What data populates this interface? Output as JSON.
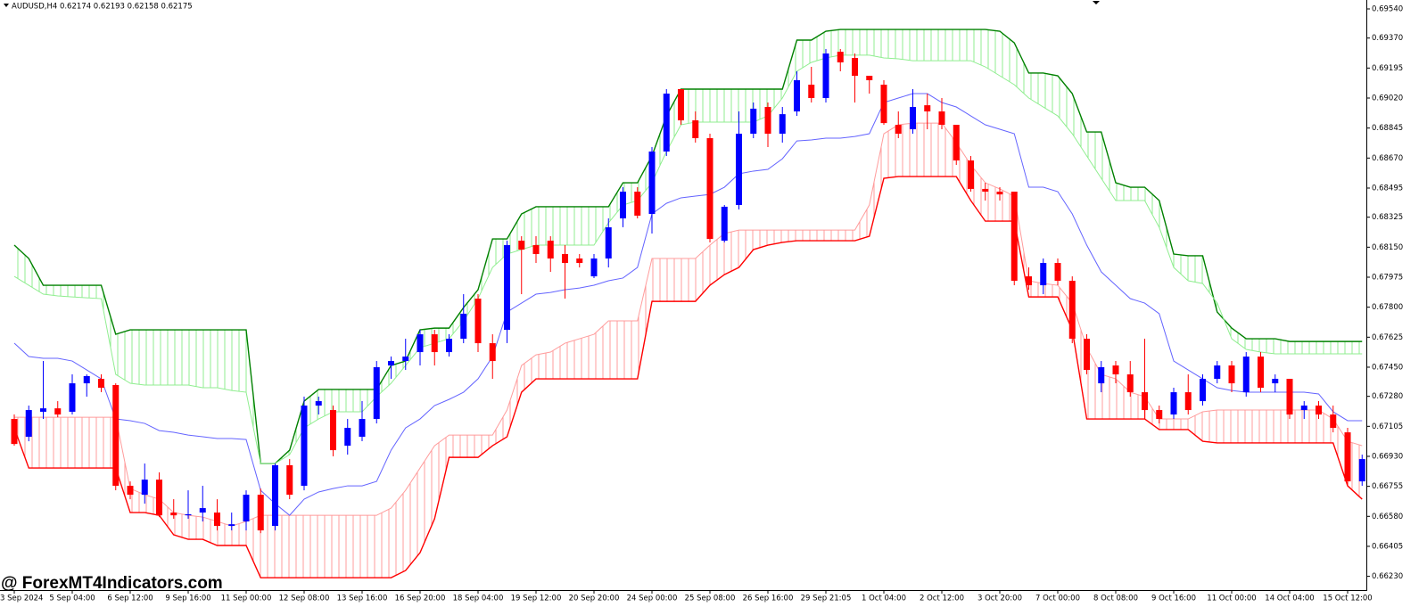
{
  "header": "AUDUSD,H4  0.62174 0.62193 0.62158 0.62175",
  "watermark": "@ ForexMT4Indicators.com",
  "chart_data": {
    "type": "candlestick",
    "categories": [
      "3 Sep 2024",
      null,
      null,
      null,
      "5 Sep 04:00",
      null,
      null,
      null,
      "6 Sep 12:00",
      null,
      null,
      null,
      "9 Sep 16:00",
      null,
      null,
      null,
      "11 Sep 00:00",
      null,
      null,
      null,
      "12 Sep 08:00",
      null,
      null,
      null,
      "13 Sep 16:00",
      null,
      null,
      null,
      "16 Sep 20:00",
      null,
      null,
      null,
      "18 Sep 04:00",
      null,
      null,
      null,
      "19 Sep 12:00",
      null,
      null,
      null,
      "20 Sep 20:00",
      null,
      null,
      null,
      "24 Sep 00:00",
      null,
      null,
      null,
      "25 Sep 08:00",
      null,
      null,
      null,
      "26 Sep 16:00",
      null,
      null,
      null,
      "29 Sep 21:05",
      null,
      null,
      null,
      "1 Oct 04:00",
      null,
      null,
      null,
      "2 Oct 12:00",
      null,
      null,
      null,
      "3 Oct 20:00",
      null,
      null,
      null,
      "7 Oct 00:00",
      null,
      null,
      null,
      "8 Oct 08:00",
      null,
      null,
      null,
      "9 Oct 16:00",
      null,
      null,
      null,
      "11 Oct 00:00",
      null,
      null,
      null,
      "14 Oct 04:00",
      null,
      null,
      null,
      "15 Oct 12:00",
      null
    ],
    "ylim": [
      0.6615,
      0.69592
    ],
    "yticks": [
      {
        "value": 0.6954,
        "label": "0.69540"
      },
      {
        "value": 0.6937,
        "label": "0.69370"
      },
      0.69195,
      {
        "value": 0.6902,
        "label": "0.69020"
      },
      0.68845,
      {
        "value": 0.6867,
        "label": "0.68670"
      },
      0.68495,
      0.68325,
      {
        "value": 0.6815,
        "label": "0.68150"
      },
      0.67975,
      {
        "value": 0.678,
        "label": "0.67800"
      },
      0.67625,
      {
        "value": 0.6745,
        "label": "0.67450"
      },
      {
        "value": 0.6728,
        "label": "0.67280"
      },
      0.67105,
      {
        "value": 0.6693,
        "label": "0.66930"
      },
      0.66755,
      {
        "value": 0.6658,
        "label": "0.66580"
      },
      0.66405,
      {
        "value": 0.6623,
        "label": "0.66230"
      }
    ],
    "up_color": "#0000ff",
    "down_color": "#ff0000",
    "ohlc": [
      [
        0.67148,
        0.67174,
        0.66992,
        0.67002
      ],
      [
        0.67044,
        0.67226,
        0.67018,
        0.672
      ],
      [
        0.6719,
        0.67486,
        0.67148,
        0.6721
      ],
      [
        0.6721,
        0.67252,
        0.67158,
        0.67174
      ],
      [
        0.6719,
        0.67408,
        0.67174,
        0.67356
      ],
      [
        0.67356,
        0.67408,
        0.67278,
        0.67398
      ],
      [
        0.67382,
        0.67408,
        0.67304,
        0.6733
      ],
      [
        0.67346,
        0.67356,
        0.66732,
        0.66758
      ],
      [
        0.66758,
        0.66784,
        0.6668,
        0.66706
      ],
      [
        0.66706,
        0.66888,
        0.66654,
        0.66794
      ],
      [
        0.66794,
        0.66836,
        0.66576,
        0.66586
      ],
      [
        0.66602,
        0.6668,
        0.66566,
        0.66586
      ],
      [
        0.66586,
        0.66732,
        0.66566,
        0.66592
      ],
      [
        0.66602,
        0.66758,
        0.6655,
        0.66628
      ],
      [
        0.66602,
        0.6668,
        0.66498,
        0.66524
      ],
      [
        0.66524,
        0.66602,
        0.66498,
        0.66534
      ],
      [
        0.6655,
        0.66732,
        0.66498,
        0.66706
      ],
      [
        0.66706,
        0.66742,
        0.66482,
        0.66498
      ],
      [
        0.66524,
        0.66888,
        0.66498,
        0.66878
      ],
      [
        0.66878,
        0.66914,
        0.6668,
        0.66706
      ],
      [
        0.66758,
        0.67278,
        0.66732,
        0.67226
      ],
      [
        0.67226,
        0.67278,
        0.67174,
        0.67252
      ],
      [
        0.672,
        0.67226,
        0.6693,
        0.66966
      ],
      [
        0.66992,
        0.67148,
        0.6694,
        0.67096
      ],
      [
        0.67044,
        0.67252,
        0.67018,
        0.67148
      ],
      [
        0.67148,
        0.67486,
        0.67122,
        0.6745
      ],
      [
        0.6746,
        0.67512,
        0.67382,
        0.67486
      ],
      [
        0.67486,
        0.67616,
        0.67434,
        0.67512
      ],
      [
        0.67538,
        0.67668,
        0.6746,
        0.67642
      ],
      [
        0.67642,
        0.67668,
        0.6746,
        0.67538
      ],
      [
        0.67538,
        0.67642,
        0.67512,
        0.67616
      ],
      [
        0.67616,
        0.67876,
        0.6759,
        0.67762
      ],
      [
        0.6785,
        0.67876,
        0.67538,
        0.6759
      ],
      [
        0.6759,
        0.67642,
        0.67382,
        0.67486
      ],
      [
        0.67668,
        0.68188,
        0.6759,
        0.68162
      ],
      [
        0.68188,
        0.68214,
        0.67876,
        0.68136
      ],
      [
        0.68162,
        0.68214,
        0.68058,
        0.6811
      ],
      [
        0.68188,
        0.68214,
        0.68006,
        0.68084
      ],
      [
        0.6811,
        0.68162,
        0.6785,
        0.68058
      ],
      [
        0.68084,
        0.6811,
        0.68032,
        0.68058
      ],
      [
        0.6798,
        0.6811,
        0.6797,
        0.68084
      ],
      [
        0.68084,
        0.68318,
        0.68032,
        0.68266
      ],
      [
        0.68318,
        0.685,
        0.68266,
        0.68474
      ],
      [
        0.68474,
        0.685,
        0.68318,
        0.68334
      ],
      [
        0.68344,
        0.68734,
        0.6823,
        0.68708
      ],
      [
        0.68708,
        0.69072,
        0.68682,
        0.69046
      ],
      [
        0.69072,
        0.69072,
        0.68864,
        0.6889
      ],
      [
        0.6889,
        0.68942,
        0.6876,
        0.68786
      ],
      [
        0.68786,
        0.68812,
        0.68178,
        0.68198
      ],
      [
        0.68188,
        0.68396,
        0.68178,
        0.68386
      ],
      [
        0.68396,
        0.68942,
        0.6837,
        0.68812
      ],
      [
        0.68812,
        0.68994,
        0.68786,
        0.68958
      ],
      [
        0.68968,
        0.68994,
        0.68734,
        0.68812
      ],
      [
        0.68812,
        0.68968,
        0.6876,
        0.68926
      ],
      [
        0.68942,
        0.69176,
        0.68916,
        0.69124
      ],
      [
        0.69098,
        0.69202,
        0.68994,
        0.6902
      ],
      [
        0.6902,
        0.69306,
        0.68994,
        0.6928
      ],
      [
        0.6929,
        0.69306,
        0.69176,
        0.69228
      ],
      [
        0.69254,
        0.6928,
        0.68994,
        0.6915
      ],
      [
        0.6915,
        0.6915,
        0.69046,
        0.69124
      ],
      [
        0.69098,
        0.69124,
        0.68864,
        0.68874
      ],
      [
        0.68864,
        0.68942,
        0.68786,
        0.68812
      ],
      [
        0.68838,
        0.69072,
        0.68812,
        0.68968
      ],
      [
        0.68978,
        0.69046,
        0.68838,
        0.68942
      ],
      [
        0.68942,
        0.6902,
        0.68838,
        0.68864
      ],
      [
        0.68864,
        0.68864,
        0.6863,
        0.68656
      ],
      [
        0.68656,
        0.68682,
        0.68474,
        0.6849
      ],
      [
        0.6849,
        0.68526,
        0.68422,
        0.68474
      ],
      [
        0.68474,
        0.685,
        0.68422,
        0.68458
      ],
      [
        0.68474,
        0.68474,
        0.67928,
        0.67954
      ],
      [
        0.6798,
        0.68032,
        0.67902,
        0.67928
      ],
      [
        0.67928,
        0.68084,
        0.67876,
        0.68058
      ],
      [
        0.68058,
        0.68084,
        0.67928,
        0.67954
      ],
      [
        0.67954,
        0.6798,
        0.6759,
        0.67616
      ],
      [
        0.67616,
        0.67642,
        0.67408,
        0.67434
      ],
      [
        0.67356,
        0.67486,
        0.67304,
        0.6745
      ],
      [
        0.6746,
        0.67486,
        0.67356,
        0.67408
      ],
      [
        0.67408,
        0.67486,
        0.67278,
        0.67304
      ],
      [
        0.67304,
        0.67616,
        0.67148,
        0.672
      ],
      [
        0.672,
        0.67226,
        0.67122,
        0.67148
      ],
      [
        0.67174,
        0.6733,
        0.67148,
        0.67304
      ],
      [
        0.67304,
        0.67408,
        0.67174,
        0.672
      ],
      [
        0.67252,
        0.67408,
        0.67226,
        0.67382
      ],
      [
        0.67382,
        0.67486,
        0.67356,
        0.6746
      ],
      [
        0.6746,
        0.67486,
        0.67304,
        0.67356
      ],
      [
        0.67304,
        0.67538,
        0.67278,
        0.67512
      ],
      [
        0.67512,
        0.67538,
        0.67304,
        0.6733
      ],
      [
        0.67356,
        0.67408,
        0.67304,
        0.67382
      ],
      [
        0.67382,
        0.67382,
        0.67148,
        0.67174
      ],
      [
        0.672,
        0.67252,
        0.67148,
        0.67226
      ],
      [
        0.67226,
        0.67252,
        0.67148,
        0.67174
      ],
      [
        0.67174,
        0.67226,
        0.6707,
        0.67096
      ],
      [
        0.6707,
        0.67096,
        0.66758,
        0.66784
      ],
      [
        0.66784,
        0.6694,
        0.66758,
        0.66914
      ]
    ],
    "series": [
      {
        "color": "#008000",
        "values": [
          0.68162,
          0.68084,
          0.67928,
          0.67928,
          0.67928,
          0.67928,
          0.67928,
          0.67642,
          0.67668,
          0.67668,
          0.67668,
          0.67668,
          0.67668,
          0.67668,
          0.67668,
          0.67668,
          0.67668,
          0.66888,
          0.66888,
          0.66966,
          0.67252,
          0.6732,
          0.6732,
          0.6732,
          0.6732,
          0.6732,
          0.6746,
          0.67486,
          0.67668,
          0.67678,
          0.67678,
          0.67798,
          0.67902,
          0.68198,
          0.68198,
          0.68344,
          0.68386,
          0.68386,
          0.68386,
          0.68386,
          0.68386,
          0.68386,
          0.68526,
          0.68526,
          0.68682,
          0.68916,
          0.69072,
          0.69072,
          0.69072,
          0.69072,
          0.69072,
          0.69072,
          0.69072,
          0.69072,
          0.69358,
          0.69358,
          0.6941,
          0.6942,
          0.6942,
          0.6942,
          0.6942,
          0.6942,
          0.6942,
          0.6942,
          0.6942,
          0.6942,
          0.6942,
          0.6942,
          0.6941,
          0.69342,
          0.69166,
          0.69166,
          0.6915,
          0.69046,
          0.68822,
          0.68822,
          0.68526,
          0.685,
          0.685,
          0.68422,
          0.6811,
          0.681,
          0.681,
          0.67772,
          0.67678,
          0.67616,
          0.67616,
          0.67616,
          0.676,
          0.676,
          0.676,
          0.676,
          0.676,
          0.676
        ]
      },
      {
        "color": "#90ee90",
        "values": [
          0.6798,
          0.67928,
          0.67876,
          0.67866,
          0.6786,
          0.67855,
          0.6785,
          0.67408,
          0.67356,
          0.67346,
          0.67346,
          0.67346,
          0.67346,
          0.6733,
          0.6733,
          0.67314,
          0.67304,
          0.66888,
          0.66888,
          0.6694,
          0.67096,
          0.67148,
          0.6719,
          0.6719,
          0.6719,
          0.67278,
          0.67356,
          0.6746,
          0.67564,
          0.6759,
          0.67616,
          0.6772,
          0.6785,
          0.68032,
          0.6811,
          0.68136,
          0.68162,
          0.68162,
          0.68162,
          0.68162,
          0.68162,
          0.68292,
          0.68396,
          0.68422,
          0.68526,
          0.68708,
          0.68864,
          0.6888,
          0.6888,
          0.6888,
          0.6888,
          0.6888,
          0.68916,
          0.6902,
          0.69176,
          0.69228,
          0.69254,
          0.6927,
          0.6927,
          0.6927,
          0.69254,
          0.69249,
          0.69238,
          0.69238,
          0.69238,
          0.69238,
          0.69238,
          0.69202,
          0.6915,
          0.69098,
          0.6902,
          0.68968,
          0.68916,
          0.68812,
          0.68682,
          0.68552,
          0.68422,
          0.68422,
          0.68422,
          0.68266,
          0.68032,
          0.67954,
          0.67938,
          0.67824,
          0.67616,
          0.67554,
          0.67538,
          0.67528,
          0.67528,
          0.67528,
          0.67528,
          0.67528,
          0.67528,
          0.67528
        ]
      },
      {
        "color": "#ff0000",
        "values": [
          0.67096,
          0.66862,
          0.66862,
          0.66862,
          0.66862,
          0.66862,
          0.66862,
          0.66862,
          0.66602,
          0.66602,
          0.66586,
          0.66472,
          0.66446,
          0.66446,
          0.6641,
          0.6641,
          0.6641,
          0.66222,
          0.66222,
          0.66222,
          0.66222,
          0.66222,
          0.66222,
          0.66222,
          0.66222,
          0.66222,
          0.66222,
          0.66264,
          0.66368,
          0.66566,
          0.66924,
          0.66924,
          0.66924,
          0.66992,
          0.67044,
          0.67304,
          0.67382,
          0.67382,
          0.67382,
          0.67382,
          0.67382,
          0.67382,
          0.67382,
          0.67382,
          0.67834,
          0.67834,
          0.67834,
          0.67834,
          0.67928,
          0.6799,
          0.68032,
          0.68136,
          0.68162,
          0.68178,
          0.68188,
          0.68188,
          0.68188,
          0.68188,
          0.68188,
          0.68214,
          0.68552,
          0.68562,
          0.68562,
          0.68562,
          0.68562,
          0.68562,
          0.68422,
          0.68302,
          0.68302,
          0.68302,
          0.6786,
          0.6786,
          0.6786,
          0.67668,
          0.67148,
          0.67148,
          0.67148,
          0.67148,
          0.67148,
          0.67086,
          0.67086,
          0.67086,
          0.67018,
          0.67008,
          0.67008,
          0.67008,
          0.67008,
          0.67008,
          0.67008,
          0.67008,
          0.67008,
          0.67008,
          0.66758,
          0.6668
        ]
      },
      {
        "color": "#ff9c9c",
        "values": [
          0.67158,
          0.67158,
          0.67158,
          0.67158,
          0.67158,
          0.67158,
          0.67158,
          0.67158,
          0.66742,
          0.66706,
          0.6668,
          0.66602,
          0.66586,
          0.66576,
          0.6655,
          0.66524,
          0.6655,
          0.66586,
          0.66586,
          0.66586,
          0.66586,
          0.66586,
          0.66586,
          0.66586,
          0.66586,
          0.66586,
          0.66628,
          0.66732,
          0.66862,
          0.66992,
          0.67054,
          0.67054,
          0.67054,
          0.67054,
          0.672,
          0.6746,
          0.67522,
          0.67538,
          0.6759,
          0.67616,
          0.67642,
          0.6772,
          0.6772,
          0.6772,
          0.68084,
          0.68084,
          0.68084,
          0.68084,
          0.68162,
          0.6823,
          0.6825,
          0.6825,
          0.6825,
          0.6825,
          0.6825,
          0.6825,
          0.6825,
          0.6825,
          0.6825,
          0.68396,
          0.68812,
          0.68864,
          0.68874,
          0.68874,
          0.68874,
          0.6876,
          0.6863,
          0.68526,
          0.6849,
          0.68448,
          0.67954,
          0.67938,
          0.67928,
          0.67824,
          0.67564,
          0.67408,
          0.67382,
          0.67304,
          0.67278,
          0.67148,
          0.67148,
          0.67148,
          0.6719,
          0.672,
          0.672,
          0.672,
          0.672,
          0.672,
          0.672,
          0.672,
          0.672,
          0.67148,
          0.67018,
          0.66992
        ]
      },
      {
        "color": "#6464ff",
        "values": [
          0.6759,
          0.67512,
          0.67502,
          0.67502,
          0.67486,
          0.67434,
          0.67382,
          0.67148,
          0.67138,
          0.67122,
          0.6708,
          0.6707,
          0.67054,
          0.67044,
          0.67034,
          0.67034,
          0.67028,
          0.66732,
          0.66654,
          0.66586,
          0.6668,
          0.66722,
          0.66742,
          0.66758,
          0.66758,
          0.66784,
          0.66966,
          0.67096,
          0.67148,
          0.67226,
          0.67262,
          0.67304,
          0.67382,
          0.67512,
          0.67772,
          0.67824,
          0.67876,
          0.67886,
          0.67902,
          0.67912,
          0.67928,
          0.67954,
          0.6797,
          0.68032,
          0.68344,
          0.68406,
          0.68438,
          0.68448,
          0.68458,
          0.685,
          0.68578,
          0.68594,
          0.68604,
          0.68666,
          0.6877,
          0.68776,
          0.68786,
          0.68786,
          0.68796,
          0.68812,
          0.68994,
          0.6902,
          0.69046,
          0.69046,
          0.68994,
          0.68968,
          0.68916,
          0.68864,
          0.68838,
          0.68812,
          0.685,
          0.685,
          0.68474,
          0.68344,
          0.68162,
          0.68006,
          0.67928,
          0.6785,
          0.67824,
          0.67762,
          0.67486,
          0.67434,
          0.67382,
          0.6733,
          0.67314,
          0.67304,
          0.67304,
          0.67304,
          0.67304,
          0.67304,
          0.67294,
          0.6719,
          0.67138,
          0.67138
        ]
      }
    ]
  }
}
